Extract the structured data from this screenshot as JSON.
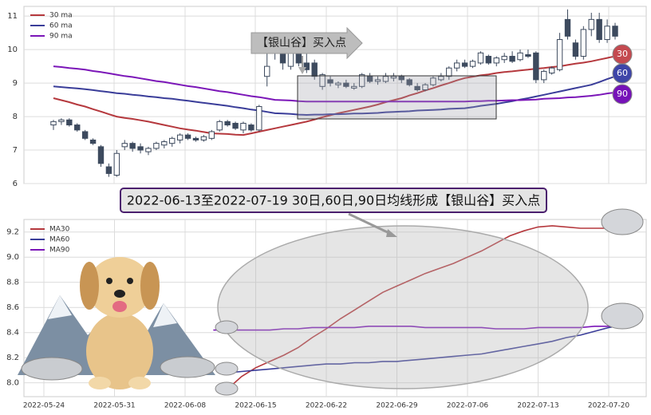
{
  "chart_data": [
    {
      "type": "candlestick",
      "annotation": "【银山谷】买入点",
      "badges": [
        "30",
        "60",
        "90"
      ],
      "ylim": [
        6,
        11.29
      ],
      "yticks": [
        6,
        7,
        8,
        9,
        10,
        11
      ],
      "grid": true,
      "up_color": "#ffffff",
      "down_color": "#3d4a5e",
      "edge_color": "#3d4a5e",
      "ohlc": [
        [
          7.75,
          7.9,
          7.6,
          7.85
        ],
        [
          7.85,
          7.95,
          7.75,
          7.9
        ],
        [
          7.9,
          7.95,
          7.7,
          7.75
        ],
        [
          7.75,
          7.8,
          7.55,
          7.6
        ],
        [
          7.55,
          7.6,
          7.3,
          7.35
        ],
        [
          7.3,
          7.35,
          7.15,
          7.2
        ],
        [
          7.1,
          7.15,
          6.5,
          6.6
        ],
        [
          6.5,
          6.6,
          6.2,
          6.3
        ],
        [
          6.25,
          7.0,
          6.2,
          6.9
        ],
        [
          7.1,
          7.3,
          7.0,
          7.2
        ],
        [
          7.2,
          7.25,
          6.95,
          7.05
        ],
        [
          7.1,
          7.2,
          6.9,
          7.0
        ],
        [
          6.95,
          7.1,
          6.85,
          7.05
        ],
        [
          7.05,
          7.25,
          7.0,
          7.2
        ],
        [
          7.15,
          7.3,
          7.05,
          7.25
        ],
        [
          7.2,
          7.4,
          7.1,
          7.35
        ],
        [
          7.3,
          7.5,
          7.2,
          7.45
        ],
        [
          7.45,
          7.5,
          7.3,
          7.35
        ],
        [
          7.35,
          7.4,
          7.25,
          7.3
        ],
        [
          7.3,
          7.45,
          7.25,
          7.4
        ],
        [
          7.35,
          7.6,
          7.3,
          7.55
        ],
        [
          7.6,
          7.9,
          7.55,
          7.85
        ],
        [
          7.85,
          7.9,
          7.7,
          7.75
        ],
        [
          7.8,
          7.85,
          7.6,
          7.65
        ],
        [
          7.6,
          7.85,
          7.5,
          7.8
        ],
        [
          7.75,
          7.8,
          7.55,
          7.6
        ],
        [
          7.6,
          8.35,
          7.55,
          8.3
        ],
        [
          9.2,
          10.1,
          8.9,
          9.5
        ],
        [
          9.9,
          10.5,
          9.7,
          10.3
        ],
        [
          10.0,
          10.3,
          9.4,
          9.6
        ],
        [
          9.5,
          10.2,
          9.4,
          10.0
        ],
        [
          9.9,
          10.0,
          9.5,
          9.6
        ],
        [
          9.6,
          9.9,
          9.3,
          9.4
        ],
        [
          9.6,
          9.7,
          9.1,
          9.2
        ],
        [
          8.9,
          9.3,
          8.8,
          9.25
        ],
        [
          9.1,
          9.2,
          8.9,
          9.0
        ],
        [
          8.95,
          9.05,
          8.85,
          9.0
        ],
        [
          9.0,
          9.1,
          8.85,
          8.9
        ],
        [
          8.85,
          9.0,
          8.8,
          8.9
        ],
        [
          8.9,
          9.3,
          8.85,
          9.25
        ],
        [
          9.2,
          9.3,
          9.0,
          9.05
        ],
        [
          9.05,
          9.2,
          8.95,
          9.1
        ],
        [
          9.05,
          9.3,
          9.0,
          9.2
        ],
        [
          9.15,
          9.3,
          9.05,
          9.2
        ],
        [
          9.2,
          9.25,
          9.0,
          9.1
        ],
        [
          9.1,
          9.15,
          8.9,
          8.95
        ],
        [
          8.9,
          9.0,
          8.75,
          8.8
        ],
        [
          8.8,
          9.0,
          8.75,
          8.95
        ],
        [
          8.95,
          9.2,
          8.9,
          9.15
        ],
        [
          9.1,
          9.3,
          9.05,
          9.2
        ],
        [
          9.2,
          9.5,
          9.1,
          9.45
        ],
        [
          9.45,
          9.7,
          9.35,
          9.6
        ],
        [
          9.6,
          9.7,
          9.45,
          9.5
        ],
        [
          9.5,
          9.7,
          9.45,
          9.65
        ],
        [
          9.6,
          9.95,
          9.55,
          9.9
        ],
        [
          9.8,
          9.85,
          9.55,
          9.6
        ],
        [
          9.6,
          9.8,
          9.5,
          9.75
        ],
        [
          9.7,
          9.9,
          9.6,
          9.8
        ],
        [
          9.8,
          9.95,
          9.6,
          9.65
        ],
        [
          9.7,
          10.0,
          9.65,
          9.9
        ],
        [
          9.85,
          10.0,
          9.75,
          9.8
        ],
        [
          9.9,
          9.95,
          9.0,
          9.1
        ],
        [
          9.1,
          9.4,
          9.0,
          9.35
        ],
        [
          9.3,
          9.5,
          9.25,
          9.45
        ],
        [
          9.4,
          10.5,
          9.35,
          10.3
        ],
        [
          10.9,
          11.2,
          10.3,
          10.4
        ],
        [
          10.2,
          10.3,
          9.7,
          9.8
        ],
        [
          9.8,
          10.7,
          9.7,
          10.6
        ],
        [
          10.6,
          11.1,
          10.4,
          10.9
        ],
        [
          10.9,
          11.1,
          10.2,
          10.3
        ],
        [
          10.3,
          10.9,
          10.2,
          10.7
        ],
        [
          10.7,
          10.8,
          10.3,
          10.4
        ]
      ],
      "series": [
        {
          "name": "30 ma",
          "color": "#b5383d",
          "values": [
            8.55,
            8.49,
            8.43,
            8.36,
            8.3,
            8.22,
            8.15,
            8.07,
            8.0,
            7.96,
            7.93,
            7.89,
            7.85,
            7.8,
            7.75,
            7.7,
            7.65,
            7.61,
            7.58,
            7.54,
            7.5,
            7.49,
            7.48,
            7.46,
            7.45,
            7.5,
            7.55,
            7.6,
            7.65,
            7.7,
            7.75,
            7.8,
            7.85,
            7.91,
            7.98,
            8.04,
            8.1,
            8.15,
            8.2,
            8.25,
            8.3,
            8.36,
            8.43,
            8.49,
            8.55,
            8.63,
            8.7,
            8.78,
            8.85,
            8.93,
            9.0,
            9.08,
            9.15,
            9.19,
            9.23,
            9.26,
            9.3,
            9.33,
            9.35,
            9.38,
            9.4,
            9.43,
            9.45,
            9.48,
            9.5,
            9.54,
            9.58,
            9.61,
            9.65,
            9.7,
            9.75,
            9.8
          ]
        },
        {
          "name": "60 ma",
          "color": "#3a3d99",
          "values": [
            8.9,
            8.88,
            8.86,
            8.84,
            8.82,
            8.79,
            8.76,
            8.73,
            8.7,
            8.68,
            8.65,
            8.63,
            8.6,
            8.58,
            8.55,
            8.53,
            8.5,
            8.47,
            8.44,
            8.41,
            8.38,
            8.35,
            8.32,
            8.28,
            8.25,
            8.21,
            8.18,
            8.14,
            8.1,
            8.09,
            8.08,
            8.06,
            8.05,
            8.06,
            8.06,
            8.07,
            8.07,
            8.08,
            8.09,
            8.09,
            8.1,
            8.11,
            8.13,
            8.14,
            8.15,
            8.16,
            8.18,
            8.19,
            8.2,
            8.21,
            8.23,
            8.24,
            8.25,
            8.28,
            8.32,
            8.35,
            8.38,
            8.42,
            8.46,
            8.51,
            8.55,
            8.6,
            8.65,
            8.7,
            8.75,
            8.8,
            8.85,
            8.9,
            8.95,
            9.03,
            9.12,
            9.2
          ]
        },
        {
          "name": "90 ma",
          "color": "#7b16b8",
          "values": [
            9.5,
            9.48,
            9.45,
            9.43,
            9.4,
            9.36,
            9.33,
            9.29,
            9.25,
            9.21,
            9.18,
            9.14,
            9.1,
            9.06,
            9.03,
            8.99,
            8.95,
            8.91,
            8.88,
            8.84,
            8.8,
            8.76,
            8.73,
            8.69,
            8.65,
            8.61,
            8.58,
            8.54,
            8.5,
            8.49,
            8.48,
            8.46,
            8.45,
            8.45,
            8.45,
            8.45,
            8.45,
            8.45,
            8.45,
            8.45,
            8.45,
            8.45,
            8.45,
            8.45,
            8.45,
            8.45,
            8.45,
            8.45,
            8.45,
            8.45,
            8.45,
            8.45,
            8.45,
            8.46,
            8.46,
            8.47,
            8.47,
            8.48,
            8.49,
            8.49,
            8.5,
            8.51,
            8.53,
            8.54,
            8.55,
            8.57,
            8.58,
            8.6,
            8.62,
            8.65,
            8.69,
            8.72
          ]
        }
      ]
    },
    {
      "type": "line",
      "annotation": "2022-06-13至2022-07-19 30日,60日,90日均线形成【银山谷】买入点",
      "ylim": [
        7.89,
        9.3
      ],
      "yticks": [
        {
          "value": 8.0,
          "label": "8.0"
        },
        8.2,
        8.4,
        8.6,
        8.8,
        {
          "value": 9.0,
          "label": "9.0"
        },
        9.2
      ],
      "grid": true,
      "categories": [
        null,
        "2022-05-24",
        null,
        null,
        null,
        null,
        "2022-05-31",
        null,
        null,
        null,
        null,
        "2022-06-08",
        null,
        null,
        null,
        null,
        "2022-06-15",
        null,
        null,
        null,
        null,
        "2022-06-22",
        null,
        null,
        null,
        null,
        "2022-06-29",
        null,
        null,
        null,
        null,
        "2022-07-06",
        null,
        null,
        null,
        null,
        "2022-07-13",
        null,
        null,
        null,
        null,
        "2022-07-20",
        null,
        null
      ],
      "series": [
        {
          "name": "MA30",
          "color": "#b5383d",
          "values": [
            null,
            null,
            null,
            null,
            null,
            null,
            null,
            null,
            null,
            null,
            null,
            null,
            null,
            null,
            7.95,
            8.05,
            8.12,
            8.17,
            8.22,
            8.28,
            8.36,
            8.43,
            8.51,
            8.58,
            8.65,
            8.72,
            8.77,
            8.82,
            8.87,
            8.91,
            8.95,
            9.0,
            9.05,
            9.11,
            9.17,
            9.21,
            9.24,
            9.25,
            9.24,
            9.23,
            9.23,
            9.23,
            9.23,
            null
          ]
        },
        {
          "name": "MA60",
          "color": "#3a3d99",
          "values": [
            null,
            null,
            null,
            null,
            null,
            null,
            null,
            null,
            null,
            null,
            null,
            null,
            null,
            null,
            8.08,
            8.09,
            8.1,
            8.11,
            8.12,
            8.13,
            8.14,
            8.15,
            8.15,
            8.16,
            8.16,
            8.17,
            8.17,
            8.18,
            8.19,
            8.2,
            8.21,
            8.22,
            8.23,
            8.25,
            8.27,
            8.29,
            8.31,
            8.33,
            8.36,
            8.38,
            8.41,
            8.44,
            8.46,
            null
          ]
        },
        {
          "name": "MA90",
          "color": "#7b16b8",
          "values": [
            null,
            null,
            null,
            null,
            null,
            null,
            null,
            null,
            null,
            null,
            null,
            null,
            null,
            8.42,
            8.42,
            8.42,
            8.42,
            8.42,
            8.43,
            8.43,
            8.44,
            8.44,
            8.44,
            8.44,
            8.45,
            8.45,
            8.45,
            8.45,
            8.44,
            8.44,
            8.44,
            8.44,
            8.44,
            8.43,
            8.43,
            8.43,
            8.44,
            8.44,
            8.44,
            8.44,
            8.45,
            8.45,
            8.45,
            null
          ]
        }
      ]
    }
  ]
}
